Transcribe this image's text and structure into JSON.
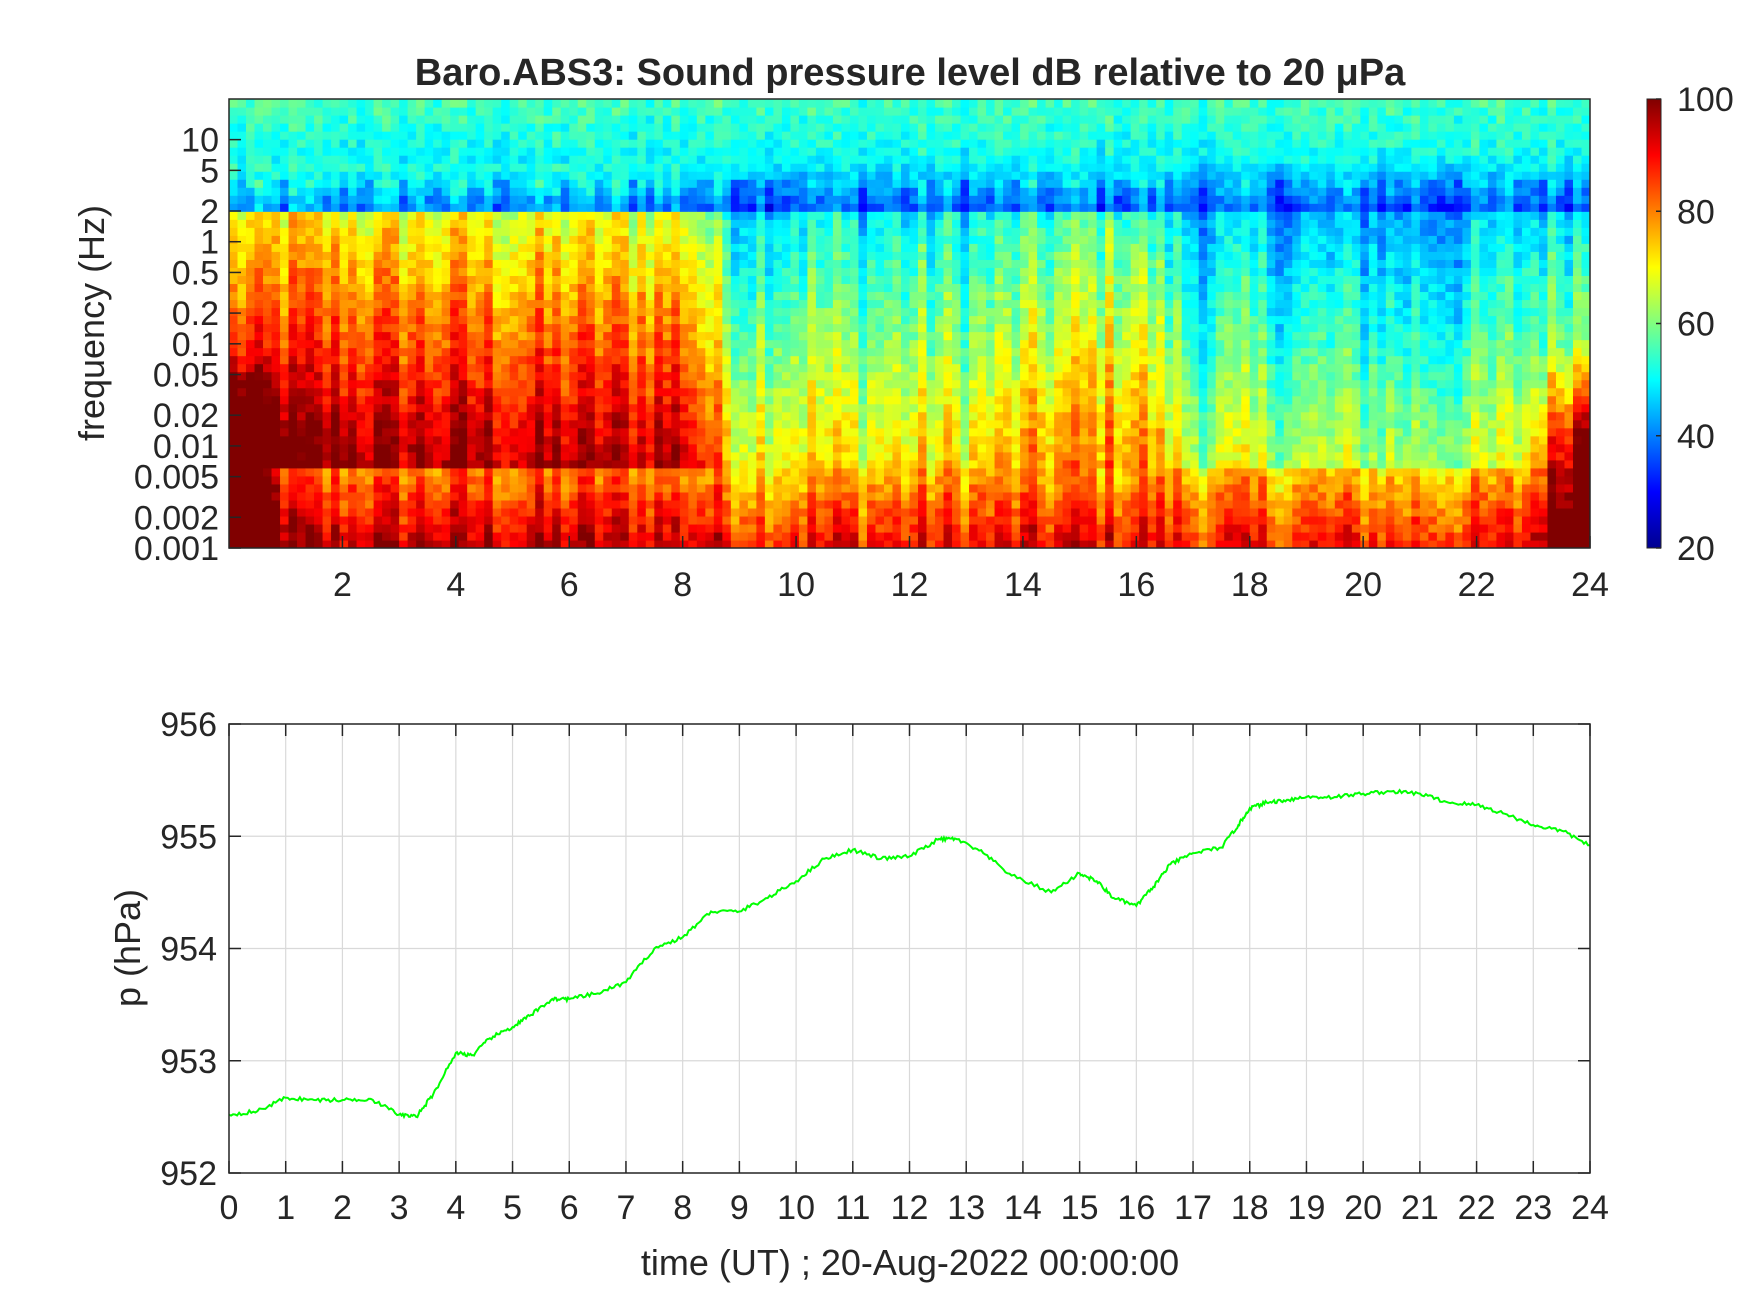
{
  "chart_data": [
    {
      "type": "heatmap",
      "title": "Baro.ABS3: Sound pressure level dB relative to 20 μPa",
      "ylabel": "frequency (Hz)",
      "xlabel": "",
      "x_ticks": [
        "2",
        "4",
        "6",
        "8",
        "10",
        "12",
        "14",
        "16",
        "18",
        "20",
        "22",
        "24"
      ],
      "x_tick_values": [
        2,
        4,
        6,
        8,
        10,
        12,
        14,
        16,
        18,
        20,
        22,
        24
      ],
      "xlim": [
        0,
        24
      ],
      "y_scale": "log",
      "y_ticks": [
        "10",
        "5",
        "2",
        "1",
        "0.5",
        "0.2",
        "0.1",
        "0.05",
        "0.02",
        "0.01",
        "0.005",
        "0.002",
        "0.001"
      ],
      "y_tick_values": [
        10,
        5,
        2,
        1,
        0.5,
        0.2,
        0.1,
        0.05,
        0.02,
        0.01,
        0.005,
        0.002,
        0.001
      ],
      "ylim": [
        0.001,
        25
      ],
      "colormap": "jet",
      "colorbar": {
        "ticks": [
          "100",
          "80",
          "60",
          "40",
          "20"
        ],
        "tick_values": [
          100,
          80,
          60,
          40,
          20
        ],
        "range": [
          20,
          100
        ]
      },
      "hour_activity": [
        0.95,
        1.0,
        1.0,
        0.95,
        0.95,
        0.9,
        0.9,
        0.9,
        0.95,
        0.3,
        0.35,
        0.3,
        0.3,
        0.3,
        0.4,
        0.5,
        0.55,
        0.15,
        0.15,
        0.1,
        0.1,
        0.1,
        0.1,
        0.25,
        0.4
      ],
      "legend": "none"
    },
    {
      "type": "line",
      "title": "",
      "xlabel": "time (UT) ; 20-Aug-2022 00:00:00",
      "ylabel": "p (hPa)",
      "xlim": [
        0,
        24
      ],
      "ylim": [
        952,
        956
      ],
      "x_ticks": [
        "0",
        "1",
        "2",
        "3",
        "4",
        "5",
        "6",
        "7",
        "8",
        "9",
        "10",
        "11",
        "12",
        "13",
        "14",
        "15",
        "16",
        "17",
        "18",
        "19",
        "20",
        "21",
        "22",
        "23",
        "24"
      ],
      "y_ticks": [
        "956",
        "955",
        "954",
        "953",
        "952"
      ],
      "y_tick_values": [
        956,
        955,
        954,
        953,
        952
      ],
      "grid": true,
      "series": [
        {
          "color": "#00ff00",
          "x": [
            0,
            0.5,
            1,
            1.5,
            2,
            2.5,
            3,
            3.3,
            3.6,
            4,
            4.3,
            4.6,
            5,
            5.3,
            5.7,
            6,
            6.5,
            7,
            7.5,
            8,
            8.5,
            9,
            9.5,
            10,
            10.5,
            11,
            11.5,
            12,
            12.5,
            12.8,
            13.3,
            13.8,
            14.5,
            15,
            15.3,
            15.6,
            16,
            16.3,
            16.6,
            17,
            17.5,
            17.8,
            18,
            18.3,
            18.6,
            19,
            19.5,
            20,
            20.5,
            21,
            21.5,
            22,
            22.5,
            23,
            23.5,
            24
          ],
          "y": [
            952.52,
            952.55,
            952.67,
            952.65,
            952.65,
            952.66,
            952.52,
            952.5,
            952.7,
            953.07,
            953.05,
            953.2,
            953.3,
            953.4,
            953.55,
            953.55,
            953.6,
            953.7,
            954.0,
            954.1,
            954.33,
            954.33,
            954.45,
            954.6,
            954.8,
            954.88,
            954.8,
            954.82,
            954.97,
            954.98,
            954.85,
            954.65,
            954.5,
            954.67,
            954.6,
            954.45,
            954.38,
            954.55,
            954.75,
            954.85,
            954.9,
            955.1,
            955.25,
            955.3,
            955.32,
            955.35,
            955.35,
            955.38,
            955.4,
            955.38,
            955.3,
            955.28,
            955.2,
            955.1,
            955.05,
            954.92
          ]
        }
      ],
      "legend": "none"
    }
  ]
}
